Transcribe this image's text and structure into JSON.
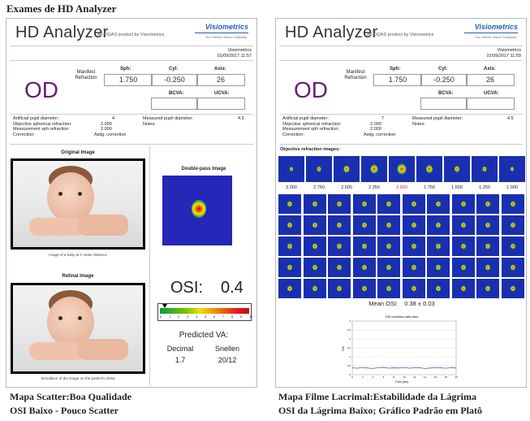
{
  "page_title": "Exames de HD Analyzer",
  "panels": [
    {
      "logo": "HD Analyzer",
      "subtitle": "An OQAS product by Visiometrics",
      "brand": "Visiometrics",
      "brand_sub": "Our Human Vision Company",
      "company": "Visiometrics",
      "datetime": "01/09/2017 11:57",
      "eye": "OD",
      "manifest_refraction": "Manifest Refraction",
      "sph_label": "Sph:",
      "sph": "1.750",
      "cyl_label": "Cyl:",
      "cyl": "-0.250",
      "axis_label": "Axis:",
      "axis": "26",
      "bcva_label": "BCVA:",
      "ucva_label": "UCVA:",
      "artificial_pupil_label": "Artificial pupil diameter:",
      "artificial_pupil": "4",
      "measured_pupil_label": "Measured pupil diameter:",
      "measured_pupil": "4.5",
      "objective_sph_label": "Objective spherical refraction:",
      "objective_sph": "2.000",
      "measurement_sph_label": "Measurement sph refraction:",
      "measurement_sph": "2.000",
      "correction_label": "Correction:",
      "correction": "Astig. correction",
      "notes_label": "Notes:",
      "original_image": "Original Image",
      "original_caption": "Image of a baby at 1 meter distance",
      "retinal_image": "Retinal Image",
      "retinal_caption": "Simulation of the image on the patient's retina",
      "double_pass": "Double-pass Image",
      "osi_label": "OSI:",
      "osi": "0.4",
      "osi_scale": [
        "0",
        "1",
        "2",
        "3",
        "4",
        "5",
        "6",
        "7",
        "8",
        "9",
        "10"
      ],
      "predicted_va": "Predicted VA:",
      "decimal_label": "Decimal",
      "decimal": "1.7",
      "snellen_label": "Snellen",
      "snellen": "20/12",
      "caption_line1": "Mapa Scatter:Boa Qualidade",
      "caption_line2": "OSI Baixo - Pouco Scatter"
    },
    {
      "logo": "HD Analyzer",
      "subtitle": "An OQAS product by Visiometrics",
      "brand": "Visiometrics",
      "brand_sub": "Our Human Vision Company",
      "company": "Visiometrics",
      "datetime": "01/09/2017 11:59",
      "eye": "OD",
      "manifest_refraction": "Manifest Refraction",
      "sph_label": "Sph:",
      "sph": "1.750",
      "cyl_label": "Cyl:",
      "cyl": "-0.250",
      "axis_label": "Axis:",
      "axis": "26",
      "bcva_label": "BCVA:",
      "ucva_label": "UCVA:",
      "artificial_pupil_label": "Artificial pupil diameter:",
      "artificial_pupil": "7",
      "measured_pupil_label": "Measured pupil diameter:",
      "measured_pupil": "4.5",
      "objective_sph_label": "Objective spherical refraction:",
      "objective_sph": "2.000",
      "measurement_sph_label": "Measurement sph refraction:",
      "measurement_sph": "2.000",
      "correction_label": "Correction:",
      "correction": "Astig. correction",
      "notes_label": "Notes:",
      "objective_refraction_images": "Objective refraction images:",
      "refraction_values": [
        "3.000",
        "2.750",
        "2.500",
        "2.250",
        "2.000",
        "1.750",
        "1.500",
        "1.250",
        "1.000"
      ],
      "selected_refraction": "2.000",
      "mean_osi_label": "Mean OSI:",
      "mean_osi": "0.38 ± 0.03",
      "chart_title": "OSI evolution with time",
      "caption_line1": "Mapa Filme Lacrimal:Estabilidade da Lágrima",
      "caption_line2": "OSI da Lágrima Baixo; Gráfico Padrão em Platô"
    }
  ],
  "chart_data": {
    "type": "line",
    "title": "OSI evolution with time",
    "xlabel": "Time (sec)",
    "ylabel": "OSI",
    "xlim": [
      0,
      20
    ],
    "ylim": [
      0,
      3
    ],
    "x": [
      0,
      1,
      2,
      3,
      4,
      5,
      6,
      7,
      8,
      9,
      10,
      11,
      12,
      13,
      14,
      15,
      16,
      17,
      18,
      19,
      20
    ],
    "series": [
      {
        "values": [
          0.38,
          0.36,
          0.4,
          0.37,
          0.35,
          0.39,
          0.41,
          0.36,
          0.38,
          0.37,
          0.4,
          0.36,
          0.39,
          0.38,
          0.35,
          0.37,
          0.4,
          0.38,
          0.36,
          0.39,
          0.37
        ]
      }
    ]
  }
}
